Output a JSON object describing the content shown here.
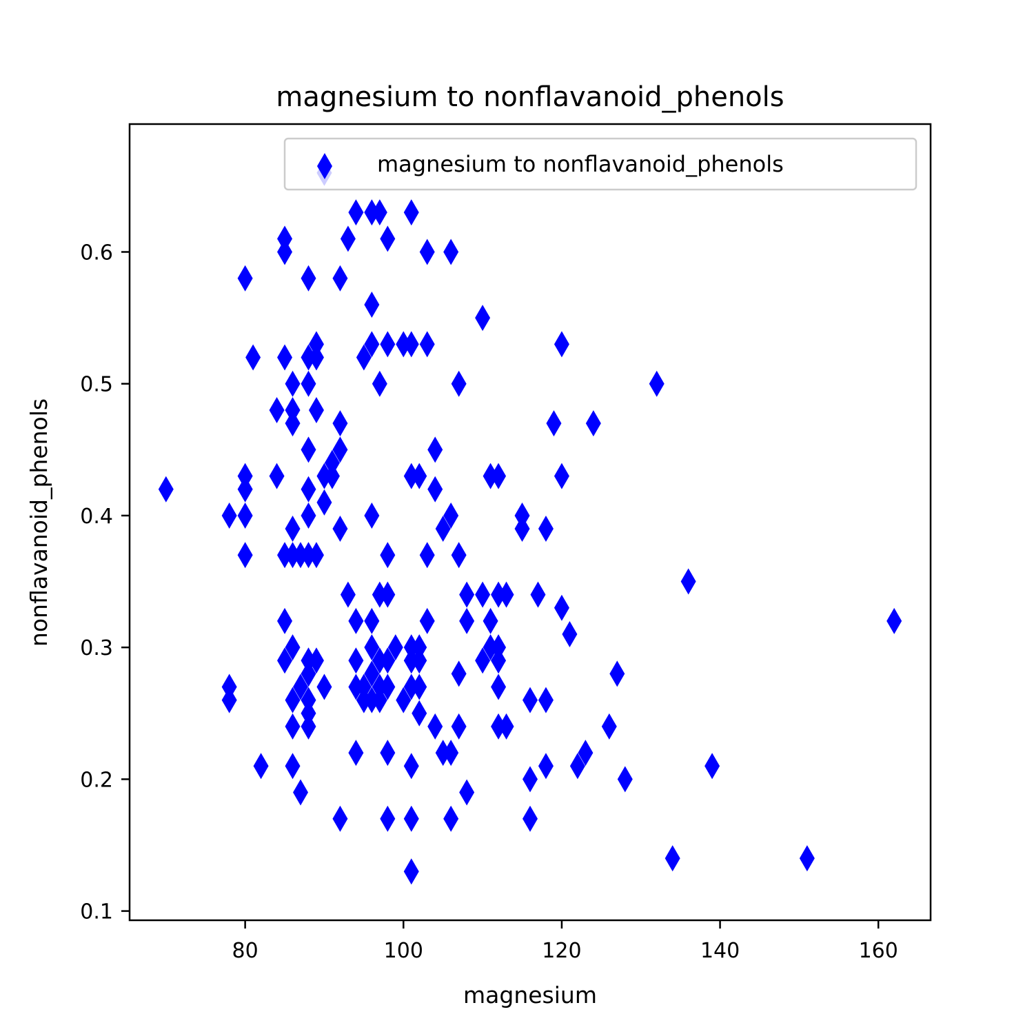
{
  "chart_data": {
    "type": "scatter",
    "title": "magnesium to nonflavanoid_phenols",
    "xlabel": "magnesium",
    "ylabel": "nonflavanoid_phenols",
    "xlim": [
      65.4,
      166.6
    ],
    "ylim": [
      0.093,
      0.697
    ],
    "xticks": [
      80,
      100,
      120,
      140,
      160
    ],
    "yticks": [
      0.1,
      0.2,
      0.3,
      0.4,
      0.5,
      0.6
    ],
    "xtick_labels": [
      "80",
      "100",
      "120",
      "140",
      "160"
    ],
    "ytick_labels": [
      "0.1",
      "0.2",
      "0.3",
      "0.4",
      "0.5",
      "0.6"
    ],
    "grid": false,
    "legend_position": "top-right",
    "marker": "thin_diamond",
    "color": "#0000ff",
    "series": [
      {
        "name": "magnesium to nonflavanoid_phenols",
        "points": [
          [
            70,
            0.42
          ],
          [
            78,
            0.4
          ],
          [
            78,
            0.27
          ],
          [
            78,
            0.26
          ],
          [
            80,
            0.58
          ],
          [
            80,
            0.43
          ],
          [
            80,
            0.42
          ],
          [
            80,
            0.4
          ],
          [
            80,
            0.37
          ],
          [
            81,
            0.52
          ],
          [
            82,
            0.21
          ],
          [
            84,
            0.48
          ],
          [
            84,
            0.43
          ],
          [
            85,
            0.61
          ],
          [
            85,
            0.6
          ],
          [
            85,
            0.52
          ],
          [
            85,
            0.37
          ],
          [
            85,
            0.32
          ],
          [
            85,
            0.29
          ],
          [
            86,
            0.5
          ],
          [
            86,
            0.48
          ],
          [
            86,
            0.47
          ],
          [
            86,
            0.39
          ],
          [
            86,
            0.37
          ],
          [
            86,
            0.3
          ],
          [
            86,
            0.26
          ],
          [
            86,
            0.24
          ],
          [
            86,
            0.21
          ],
          [
            87,
            0.37
          ],
          [
            87,
            0.27
          ],
          [
            87,
            0.19
          ],
          [
            88,
            0.58
          ],
          [
            88,
            0.52
          ],
          [
            88,
            0.5
          ],
          [
            88,
            0.45
          ],
          [
            88,
            0.42
          ],
          [
            88,
            0.4
          ],
          [
            88,
            0.37
          ],
          [
            88,
            0.29
          ],
          [
            88,
            0.28
          ],
          [
            88,
            0.26
          ],
          [
            88,
            0.25
          ],
          [
            88,
            0.24
          ],
          [
            89,
            0.53
          ],
          [
            89,
            0.52
          ],
          [
            89,
            0.48
          ],
          [
            89,
            0.37
          ],
          [
            89,
            0.29
          ],
          [
            90,
            0.66
          ],
          [
            90,
            0.43
          ],
          [
            90,
            0.41
          ],
          [
            90,
            0.27
          ],
          [
            91,
            0.44
          ],
          [
            91,
            0.43
          ],
          [
            92,
            0.58
          ],
          [
            92,
            0.47
          ],
          [
            92,
            0.45
          ],
          [
            92,
            0.39
          ],
          [
            92,
            0.17
          ],
          [
            93,
            0.61
          ],
          [
            93,
            0.34
          ],
          [
            94,
            0.63
          ],
          [
            94,
            0.32
          ],
          [
            94,
            0.29
          ],
          [
            94,
            0.27
          ],
          [
            94,
            0.22
          ],
          [
            95,
            0.52
          ],
          [
            95,
            0.27
          ],
          [
            95,
            0.26
          ],
          [
            96,
            0.63
          ],
          [
            96,
            0.56
          ],
          [
            96,
            0.53
          ],
          [
            96,
            0.4
          ],
          [
            96,
            0.32
          ],
          [
            96,
            0.3
          ],
          [
            96,
            0.28
          ],
          [
            96,
            0.26
          ],
          [
            97,
            0.63
          ],
          [
            97,
            0.5
          ],
          [
            97,
            0.34
          ],
          [
            97,
            0.29
          ],
          [
            97,
            0.27
          ],
          [
            97,
            0.26
          ],
          [
            98,
            0.61
          ],
          [
            98,
            0.53
          ],
          [
            98,
            0.37
          ],
          [
            98,
            0.34
          ],
          [
            98,
            0.29
          ],
          [
            98,
            0.27
          ],
          [
            98,
            0.22
          ],
          [
            98,
            0.17
          ],
          [
            99,
            0.3
          ],
          [
            100,
            0.53
          ],
          [
            100,
            0.26
          ],
          [
            101,
            0.63
          ],
          [
            101,
            0.53
          ],
          [
            101,
            0.43
          ],
          [
            101,
            0.3
          ],
          [
            101,
            0.29
          ],
          [
            101,
            0.27
          ],
          [
            101,
            0.21
          ],
          [
            101,
            0.17
          ],
          [
            101,
            0.13
          ],
          [
            102,
            0.43
          ],
          [
            102,
            0.3
          ],
          [
            102,
            0.29
          ],
          [
            102,
            0.27
          ],
          [
            102,
            0.25
          ],
          [
            103,
            0.6
          ],
          [
            103,
            0.53
          ],
          [
            103,
            0.37
          ],
          [
            103,
            0.32
          ],
          [
            104,
            0.45
          ],
          [
            104,
            0.42
          ],
          [
            104,
            0.24
          ],
          [
            105,
            0.39
          ],
          [
            105,
            0.22
          ],
          [
            106,
            0.6
          ],
          [
            106,
            0.4
          ],
          [
            106,
            0.22
          ],
          [
            106,
            0.17
          ],
          [
            107,
            0.5
          ],
          [
            107,
            0.37
          ],
          [
            107,
            0.28
          ],
          [
            107,
            0.24
          ],
          [
            108,
            0.34
          ],
          [
            108,
            0.32
          ],
          [
            108,
            0.19
          ],
          [
            110,
            0.55
          ],
          [
            110,
            0.34
          ],
          [
            110,
            0.29
          ],
          [
            111,
            0.43
          ],
          [
            111,
            0.32
          ],
          [
            111,
            0.3
          ],
          [
            112,
            0.43
          ],
          [
            112,
            0.34
          ],
          [
            112,
            0.3
          ],
          [
            112,
            0.29
          ],
          [
            112,
            0.27
          ],
          [
            112,
            0.24
          ],
          [
            113,
            0.34
          ],
          [
            113,
            0.24
          ],
          [
            115,
            0.4
          ],
          [
            115,
            0.39
          ],
          [
            116,
            0.26
          ],
          [
            116,
            0.2
          ],
          [
            116,
            0.17
          ],
          [
            117,
            0.34
          ],
          [
            118,
            0.39
          ],
          [
            118,
            0.26
          ],
          [
            118,
            0.21
          ],
          [
            119,
            0.47
          ],
          [
            120,
            0.53
          ],
          [
            120,
            0.43
          ],
          [
            120,
            0.33
          ],
          [
            121,
            0.31
          ],
          [
            122,
            0.21
          ],
          [
            123,
            0.22
          ],
          [
            124,
            0.47
          ],
          [
            126,
            0.24
          ],
          [
            127,
            0.28
          ],
          [
            128,
            0.2
          ],
          [
            132,
            0.5
          ],
          [
            134,
            0.14
          ],
          [
            136,
            0.35
          ],
          [
            139,
            0.21
          ],
          [
            151,
            0.14
          ],
          [
            162,
            0.32
          ]
        ]
      }
    ]
  }
}
